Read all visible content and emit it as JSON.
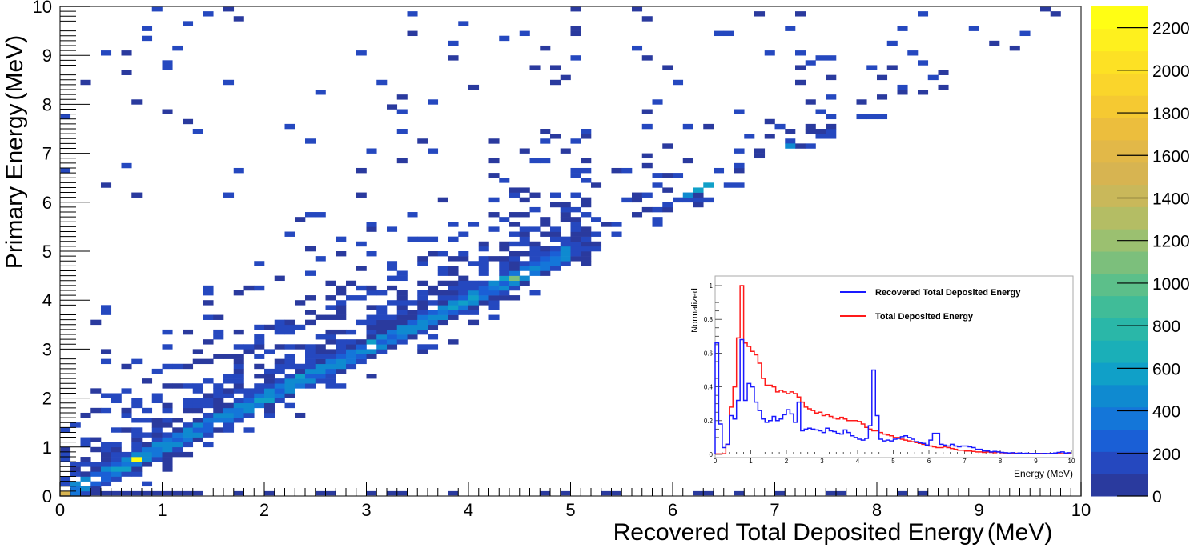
{
  "chart_data": [
    {
      "type": "heatmap",
      "title": "",
      "xlabel": "Recovered Total Deposited Energy (MeV)",
      "ylabel": "Primary Energy (MeV)",
      "xlim": [
        0,
        10
      ],
      "ylim": [
        0,
        10
      ],
      "x_ticks": [
        0,
        1,
        2,
        3,
        4,
        5,
        6,
        7,
        8,
        9,
        10
      ],
      "y_ticks": [
        0,
        1,
        2,
        3,
        4,
        5,
        6,
        7,
        8,
        9,
        10
      ],
      "bin_width": 0.1,
      "grid": false,
      "colorbar": {
        "range": [
          0,
          2300
        ],
        "ticks": [
          0,
          200,
          400,
          600,
          800,
          1000,
          1200,
          1400,
          1600,
          1800,
          2000,
          2200
        ],
        "colors": [
          "#2a3a9e",
          "#2548bf",
          "#1a5fd6",
          "#1476d9",
          "#0f8ad0",
          "#10a0c8",
          "#1aafb8",
          "#2ab7a8",
          "#40bc98",
          "#5cbf8a",
          "#7cbf7c",
          "#9bc070",
          "#b4bd64",
          "#c9b85a",
          "#d7b451",
          "#e2b848",
          "#ecbe3d",
          "#f5c932",
          "#fad52b",
          "#fde124",
          "#fef01e",
          "#fffe14"
        ]
      },
      "hot_bins": [
        {
          "x": 0.0,
          "y": 0.0,
          "value": 1500
        },
        {
          "x": 0.7,
          "y": 0.7,
          "value": 2300
        },
        {
          "x": 4.4,
          "y": 4.4,
          "value": 1100
        },
        {
          "x": 6.3,
          "y": 6.3,
          "value": 600
        },
        {
          "x": 6.2,
          "y": 6.2,
          "value": 550
        },
        {
          "x": 6.1,
          "y": 6.1,
          "value": 500
        },
        {
          "x": 7.1,
          "y": 7.1,
          "value": 450
        }
      ],
      "band_description": "Dense diagonal band along y = x from 0 to ~5 MeV with counts 200-700, surrounding cloud of low-count bins (< 200) spreading above the diagonal, sparse isolated bins up to 10 MeV, and a row of bins at y = 0 across x."
    },
    {
      "type": "line",
      "title": "",
      "xlabel": "Energy (MeV)",
      "ylabel": "Normalized",
      "xlim": [
        0,
        10
      ],
      "ylim": [
        0,
        1.05
      ],
      "x_ticks": [
        0,
        1,
        2,
        3,
        4,
        5,
        6,
        7,
        8,
        9,
        10
      ],
      "y_ticks": [
        0,
        0.2,
        0.4,
        0.6,
        0.8,
        1
      ],
      "step": true,
      "bin_width": 0.1,
      "legend_position": "upper right",
      "series": [
        {
          "name": "Recovered Total Deposited Energy",
          "color": "#1a1aff",
          "values": [
            0.66,
            0.18,
            0.04,
            0.06,
            0.23,
            0.21,
            0.32,
            0.68,
            0.32,
            0.42,
            0.4,
            0.31,
            0.26,
            0.21,
            0.19,
            0.2,
            0.225,
            0.2,
            0.21,
            0.235,
            0.265,
            0.24,
            0.19,
            0.31,
            0.14,
            0.15,
            0.155,
            0.15,
            0.145,
            0.14,
            0.13,
            0.155,
            0.14,
            0.135,
            0.125,
            0.12,
            0.145,
            0.13,
            0.11,
            0.1,
            0.09,
            0.085,
            0.095,
            0.17,
            0.5,
            0.23,
            0.09,
            0.08,
            0.085,
            0.08,
            0.09,
            0.095,
            0.105,
            0.11,
            0.1,
            0.09,
            0.075,
            0.07,
            0.065,
            0.055,
            0.085,
            0.125,
            0.125,
            0.06,
            0.055,
            0.05,
            0.06,
            0.05,
            0.045,
            0.05,
            0.05,
            0.045,
            0.04,
            0.03,
            0.03,
            0.02,
            0.02,
            0.015,
            0.018,
            0.015,
            0.012,
            0.01,
            0.008,
            0.01,
            0.006,
            0.008,
            0.006,
            0.007,
            0.005,
            0.006,
            0.006,
            0.005,
            0.006,
            0.005,
            0.006,
            0.008,
            0.012,
            0.015,
            0.008,
            0.01
          ]
        },
        {
          "name": "Total Deposited Energy",
          "color": "#ff1a1a",
          "values": [
            0.003,
            0.003,
            0.004,
            0.06,
            0.28,
            0.4,
            0.69,
            1.0,
            0.66,
            0.64,
            0.61,
            0.59,
            0.54,
            0.45,
            0.41,
            0.41,
            0.4,
            0.37,
            0.38,
            0.37,
            0.36,
            0.37,
            0.36,
            0.34,
            0.31,
            0.28,
            0.27,
            0.26,
            0.245,
            0.25,
            0.23,
            0.235,
            0.225,
            0.215,
            0.21,
            0.22,
            0.21,
            0.2,
            0.2,
            0.2,
            0.195,
            0.18,
            0.16,
            0.15,
            0.14,
            0.14,
            0.13,
            0.12,
            0.115,
            0.11,
            0.1,
            0.1,
            0.09,
            0.085,
            0.08,
            0.075,
            0.07,
            0.065,
            0.06,
            0.055,
            0.05,
            0.045,
            0.04,
            0.04,
            0.045,
            0.04,
            0.035,
            0.03,
            0.025,
            0.025,
            0.02,
            0.02,
            0.018,
            0.015,
            0.015,
            0.012,
            0.015,
            0.012,
            0.01,
            0.015,
            0.01,
            0.009,
            0.008,
            0.008,
            0.007,
            0.007,
            0.006,
            0.006,
            0.006,
            0.005,
            0.005,
            0.006,
            0.005,
            0.005,
            0.006,
            0.005,
            0.005,
            0.005,
            0.004,
            0.004
          ]
        }
      ]
    }
  ],
  "main": {
    "xlabel": "Recovered Total Deposited Energy",
    "xlabel_unit": "(MeV)",
    "ylabel": "Primary Energy",
    "ylabel_unit": "(MeV)"
  },
  "inset": {
    "ylabel": "Normalized",
    "xlabel": "Energy (MeV)",
    "legend": [
      {
        "label": "Recovered Total Deposited Energy",
        "color": "#1a1aff"
      },
      {
        "label": "Total Deposited Energy",
        "color": "#ff1a1a"
      }
    ]
  }
}
